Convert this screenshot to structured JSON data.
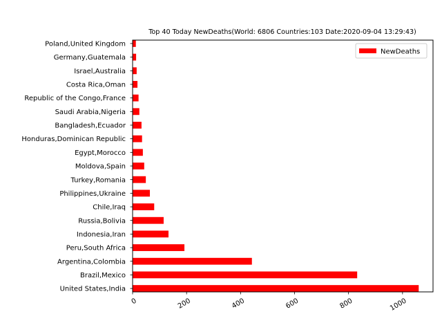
{
  "chart_data": {
    "type": "bar",
    "orientation": "horizontal",
    "title": "Top 40 Today NewDeaths(World: 6806 Countries:103 Date:2020-09-04 13:29:43)",
    "xlabel": "",
    "ylabel": "",
    "xlim": [
      0,
      1113
    ],
    "x_ticks": [
      0,
      200,
      400,
      600,
      800,
      1000
    ],
    "legend": {
      "entries": [
        "NewDeaths"
      ],
      "placement": "top-right"
    },
    "bar_color": "#ff0000",
    "categories": [
      "United States,India",
      "Brazil,Mexico",
      "Argentina,Colombia",
      "Peru,South Africa",
      "Indonesia,Iran",
      "Russia,Bolivia",
      "Chile,Iraq",
      "Philippines,Ukraine",
      "Turkey,Romania",
      "Moldova,Spain",
      "Egypt,Morocco",
      "Honduras,Dominican Republic",
      "Bangladesh,Ecuador",
      "Saudi Arabia,Nigeria",
      "Republic of the Congo,France",
      "Costa Rica,Oman",
      "Israel,Australia",
      "Germany,Guatemala",
      "Poland,United Kingdom"
    ],
    "series": [
      {
        "name": "NewDeaths",
        "values": [
          1060,
          832,
          442,
          192,
          133,
          115,
          80,
          64,
          49,
          43,
          38,
          35,
          33,
          25,
          22,
          18,
          15,
          13,
          12
        ]
      }
    ]
  }
}
